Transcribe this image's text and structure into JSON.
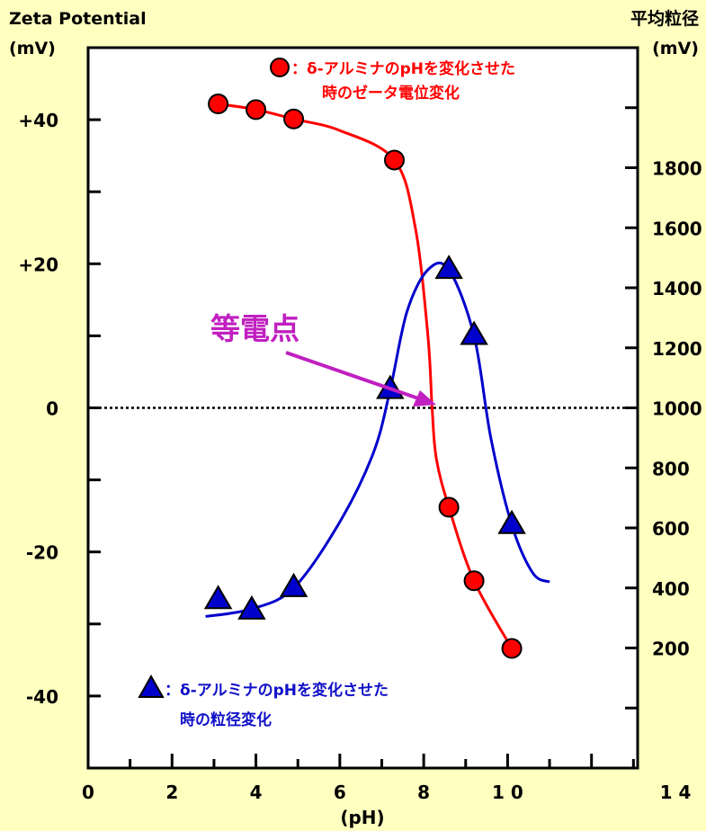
{
  "chart_data": {
    "type": "scatter",
    "left_axis": {
      "title": "Zeta Potential",
      "unit": "(mV)",
      "tick_labels": [
        {
          "value": 40,
          "label": "+40"
        },
        {
          "value": 20,
          "label": "+20"
        },
        {
          "value": 0,
          "label": "0"
        },
        {
          "value": -20,
          "label": "-20"
        },
        {
          "value": -40,
          "label": "-40"
        }
      ],
      "ylim": [
        -50,
        50
      ]
    },
    "right_axis": {
      "title": "平均粒径",
      "unit": "(mV)",
      "tick_labels": [
        {
          "value": 200,
          "label": "200"
        },
        {
          "value": 400,
          "label": "400"
        },
        {
          "value": 600,
          "label": "600"
        },
        {
          "value": 800,
          "label": "800"
        },
        {
          "value": 1000,
          "label": "1000"
        },
        {
          "value": 1200,
          "label": "1200"
        },
        {
          "value": 1400,
          "label": "1400"
        },
        {
          "value": 1600,
          "label": "1600"
        },
        {
          "value": 1800,
          "label": "1800"
        }
      ],
      "ylim": [
        -200,
        2200
      ]
    },
    "x_axis": {
      "label": "(pH)",
      "tick_labels": [
        {
          "value": 0,
          "label": "0"
        },
        {
          "value": 2,
          "label": "2"
        },
        {
          "value": 4,
          "label": "4"
        },
        {
          "value": 6,
          "label": "6"
        },
        {
          "value": 8,
          "label": "8"
        },
        {
          "value": 10,
          "label": "1 0"
        },
        {
          "value": 14,
          "label": "1 4"
        }
      ],
      "xlim": [
        0,
        13.1
      ]
    },
    "zero_line": true,
    "series": [
      {
        "name": "δ-アルミナのpHを変化させた時のゼータ電位変化",
        "axis": "left",
        "marker": "circle",
        "color": "#ff0000",
        "points": [
          {
            "x": 3.1,
            "y": 42.2
          },
          {
            "x": 4.0,
            "y": 41.4
          },
          {
            "x": 4.9,
            "y": 40.1
          },
          {
            "x": 7.3,
            "y": 34.4
          },
          {
            "x": 8.6,
            "y": -13.8
          },
          {
            "x": 9.2,
            "y": -24.0
          },
          {
            "x": 10.1,
            "y": -33.4
          }
        ],
        "curve": [
          {
            "x": 3.1,
            "y": 42.2
          },
          {
            "x": 4.0,
            "y": 41.4
          },
          {
            "x": 4.9,
            "y": 40.1
          },
          {
            "x": 6.0,
            "y": 38.5
          },
          {
            "x": 7.3,
            "y": 34.4
          },
          {
            "x": 7.8,
            "y": 25.0
          },
          {
            "x": 8.1,
            "y": 10.0
          },
          {
            "x": 8.2,
            "y": 0.0
          },
          {
            "x": 8.3,
            "y": -7.0
          },
          {
            "x": 8.6,
            "y": -13.8
          },
          {
            "x": 9.2,
            "y": -24.0
          },
          {
            "x": 10.1,
            "y": -33.4
          }
        ]
      },
      {
        "name": "δ-アルミナのpHを変化させた時の粒径変化",
        "axis": "right",
        "marker": "triangle",
        "color": "#0000cc",
        "points": [
          {
            "x": 3.1,
            "y": 360
          },
          {
            "x": 3.9,
            "y": 325
          },
          {
            "x": 4.9,
            "y": 400
          },
          {
            "x": 7.2,
            "y": 1060
          },
          {
            "x": 8.6,
            "y": 1460
          },
          {
            "x": 9.2,
            "y": 1240
          },
          {
            "x": 10.1,
            "y": 610
          }
        ],
        "curve": [
          {
            "x": 2.8,
            "y": 305
          },
          {
            "x": 3.9,
            "y": 330
          },
          {
            "x": 4.9,
            "y": 400
          },
          {
            "x": 6.0,
            "y": 620
          },
          {
            "x": 6.8,
            "y": 850
          },
          {
            "x": 7.2,
            "y": 1060
          },
          {
            "x": 7.6,
            "y": 1320
          },
          {
            "x": 8.1,
            "y": 1460
          },
          {
            "x": 8.6,
            "y": 1460
          },
          {
            "x": 9.2,
            "y": 1240
          },
          {
            "x": 9.6,
            "y": 900
          },
          {
            "x": 10.1,
            "y": 610
          },
          {
            "x": 10.6,
            "y": 450
          },
          {
            "x": 11.0,
            "y": 420
          }
        ]
      }
    ]
  },
  "legend": {
    "circle_line1": "：δ-アルミナのpHを変化させた",
    "circle_line2": "時のゼータ電位変化",
    "triangle_line1": "：δ-アルミナのpHを変化させた",
    "triangle_line2": "時の粒径変化"
  },
  "annotation": {
    "text": "等電点",
    "color": "#c020c0"
  }
}
